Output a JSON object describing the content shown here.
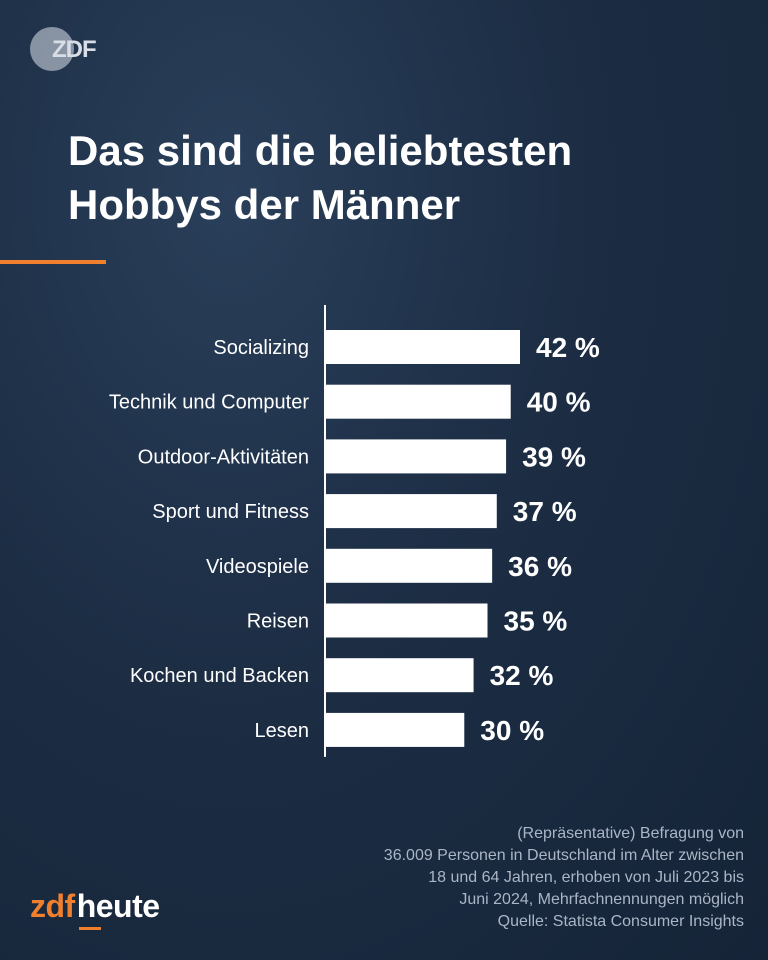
{
  "header": {
    "logo_icon": "zdf-logo-icon",
    "logo_text": "ZDF",
    "title_line1": "Das sind die beliebtesten",
    "title_line2": "Hobbys der Männer"
  },
  "colors": {
    "background": "#1c2d44",
    "accent": "#f07f2e",
    "bar": "#ffffff",
    "text": "#ffffff",
    "footnote": "#aab6c6"
  },
  "chart_data": {
    "type": "bar",
    "orientation": "horizontal",
    "categories": [
      "Socializing",
      "Technik und Computer",
      "Outdoor-Aktivitäten",
      "Sport und Fitness",
      "Videospiele",
      "Reisen",
      "Kochen und Backen",
      "Lesen"
    ],
    "values": [
      42,
      40,
      39,
      37,
      36,
      35,
      32,
      30
    ],
    "value_labels": [
      "42 %",
      "40 %",
      "39 %",
      "37 %",
      "36 %",
      "35 %",
      "32 %",
      "30 %"
    ],
    "unit": "%",
    "xlim": [
      0,
      100
    ],
    "grid": false,
    "legend": "none"
  },
  "footnote": {
    "lines": [
      "(Repräsentative) Befragung von",
      "36.009 Personen in Deutschland im Alter zwischen",
      "18 und 64 Jahren, erhoben von Juli 2023 bis",
      "Juni 2024, Mehrfachnennungen möglich",
      "Quelle: Statista Consumer Insights"
    ]
  },
  "brand": {
    "part1": "zdf",
    "part2": "heute"
  }
}
